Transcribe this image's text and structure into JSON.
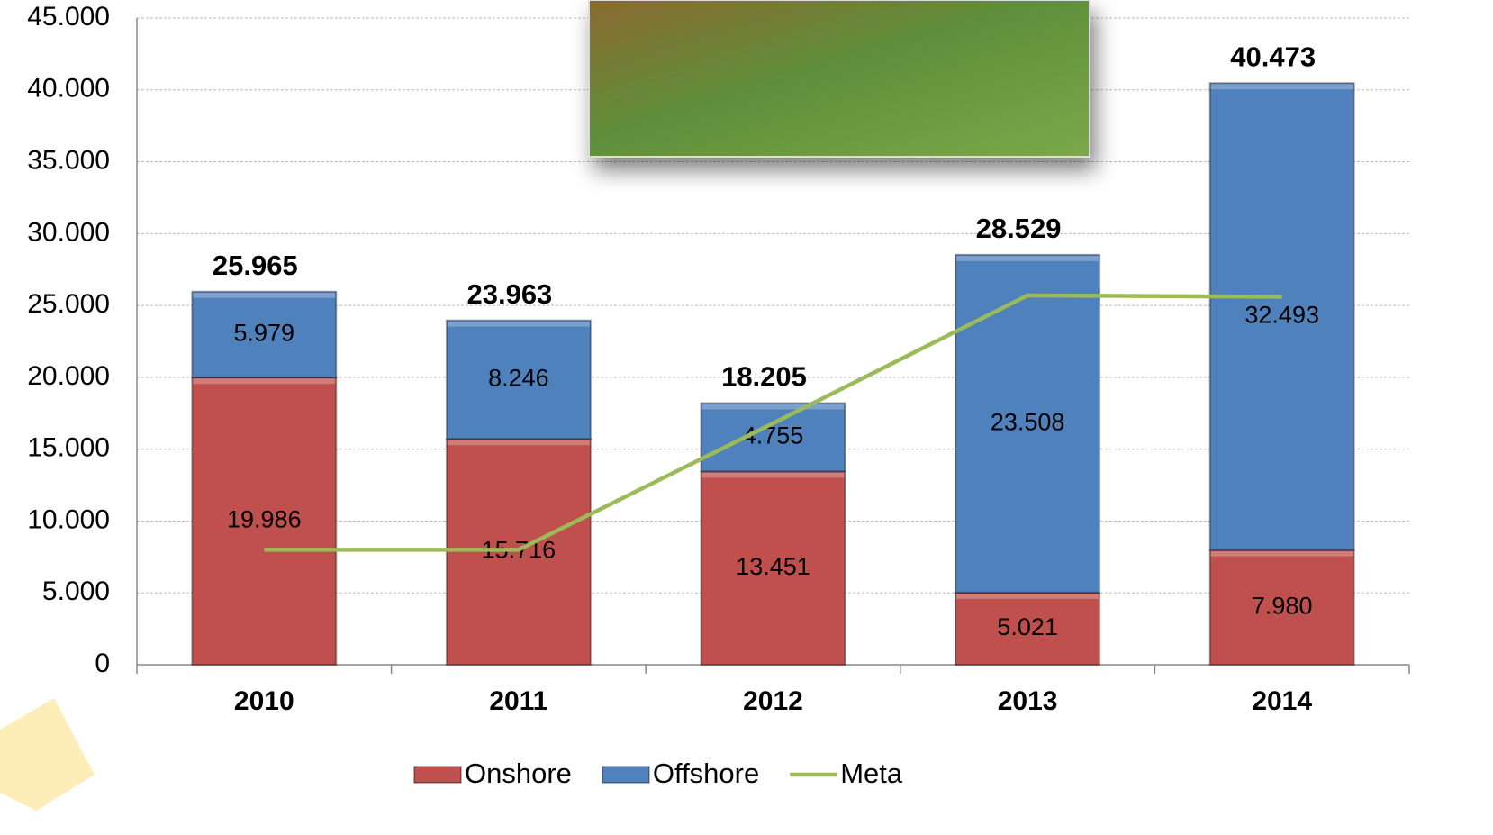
{
  "chart_data": {
    "type": "bar",
    "stacked": true,
    "categories": [
      "2010",
      "2011",
      "2012",
      "2013",
      "2014"
    ],
    "series": [
      {
        "name": "Onshore",
        "color": "#c0504d",
        "values": [
          19986,
          15716,
          13451,
          5021,
          7980
        ],
        "value_labels": [
          "19.986",
          "15.716",
          "13.451",
          "5.021",
          "7.980"
        ]
      },
      {
        "name": "Offshore",
        "color": "#4f81bd",
        "values": [
          5979,
          8246,
          4755,
          23508,
          32493
        ],
        "value_labels": [
          "5.979",
          "8.246",
          "4.755",
          "23.508",
          "32.493"
        ]
      },
      {
        "name": "Meta",
        "type": "line",
        "color": "#9bbb59",
        "values": [
          8000,
          8000,
          16800,
          25700,
          25600
        ]
      }
    ],
    "totals": {
      "values": [
        25965,
        23963,
        18205,
        28529,
        40473
      ],
      "value_labels": [
        "25.965",
        "23.963",
        "18.205",
        "28.529",
        "40.473"
      ]
    },
    "ylim": [
      0,
      45000
    ],
    "yticks": [
      0,
      {
        "value": 5000,
        "label": "5.000"
      },
      {
        "value": 10000,
        "label": "10.000"
      },
      {
        "value": 15000,
        "label": "15.000"
      },
      {
        "value": 20000,
        "label": "20.000"
      },
      {
        "value": 25000,
        "label": "25.000"
      },
      {
        "value": 30000,
        "label": "30.000"
      },
      {
        "value": 35000,
        "label": "35.000"
      },
      {
        "value": 40000,
        "label": "40.000"
      },
      {
        "value": 45000,
        "label": "45.000"
      }
    ],
    "grid": true,
    "legend": "bottom"
  }
}
